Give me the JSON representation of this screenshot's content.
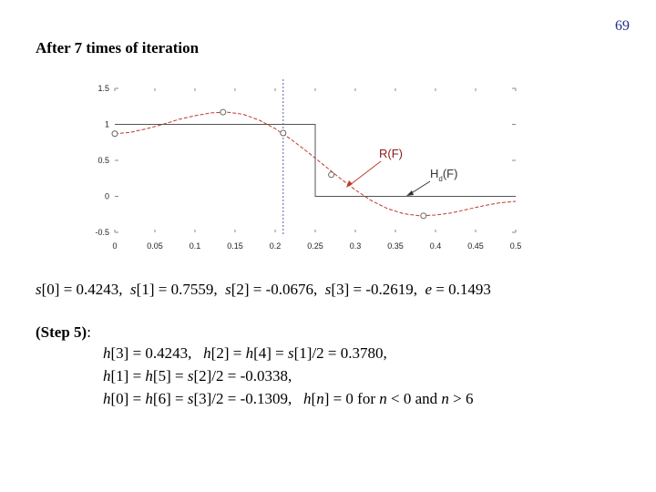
{
  "page_number": "69",
  "heading": "After 7 times of iteration",
  "chart_data": {
    "type": "line",
    "title": "",
    "xlabel": "",
    "ylabel": "",
    "xlim": [
      0,
      0.5
    ],
    "ylim": [
      -0.5,
      1.5
    ],
    "x_ticks": [
      "0",
      "0.05",
      "0.1",
      "0.15",
      "0.2",
      "0.25",
      "0.3",
      "0.35",
      "0.4",
      "0.45",
      "0.5"
    ],
    "y_ticks": [
      "1.5",
      "1",
      "0.5",
      "0",
      "-0.5"
    ],
    "grid": false,
    "series": [
      {
        "name": "R(F)",
        "color": "#c0392b",
        "style": "dashed",
        "x": [
          0,
          0.02,
          0.04,
          0.06,
          0.08,
          0.1,
          0.12,
          0.14,
          0.16,
          0.18,
          0.2,
          0.22,
          0.24,
          0.26,
          0.28,
          0.3,
          0.32,
          0.34,
          0.36,
          0.38,
          0.4,
          0.42,
          0.44,
          0.46,
          0.48,
          0.5
        ],
        "y": [
          0.87,
          0.89,
          0.94,
          1.0,
          1.07,
          1.12,
          1.16,
          1.17,
          1.14,
          1.06,
          0.94,
          0.79,
          0.62,
          0.44,
          0.26,
          0.09,
          -0.06,
          -0.17,
          -0.24,
          -0.27,
          -0.26,
          -0.23,
          -0.18,
          -0.13,
          -0.09,
          -0.07
        ]
      },
      {
        "name": "Hd(F)",
        "color": "#555555",
        "style": "solid",
        "x": [
          0,
          0.25,
          0.25,
          0.5
        ],
        "y": [
          1,
          1,
          0,
          0
        ]
      }
    ],
    "extremal_points": {
      "x": [
        0,
        0.135,
        0.21,
        0.27,
        0.385
      ],
      "y": [
        0.87,
        1.17,
        0.88,
        0.3,
        -0.27
      ]
    },
    "reference_line": {
      "x": 0.21,
      "style": "dotted",
      "color": "#5560a0"
    },
    "annotations": [
      {
        "text": "R(F)",
        "color": "#8b1a1a"
      },
      {
        "text_main": "H",
        "text_sub": "d",
        "text_tail": "(F)"
      }
    ]
  },
  "results": {
    "s0_lbl": "s",
    "s0_idx": "[0] = 0.4243,",
    "s1_lbl": "s",
    "s1_idx": "[1] = 0.7559,",
    "s2_lbl": "s",
    "s2_idx": "[2] = -0.0676,",
    "s3_lbl": "s",
    "s3_idx": "[3] = -0.2619,",
    "e_lbl": "e",
    "e_val": " = 0.1493"
  },
  "step": {
    "label": "(Step 5)",
    "colon": ":",
    "line1": {
      "a": "h",
      "b": "[3] = 0.4243, ",
      "c": "h",
      "d": "[2] = ",
      "e": "h",
      "f": "[4] = ",
      "g": "s",
      "h": "[1]/2 = 0.3780,"
    },
    "line2": {
      "a": "h",
      "b": "[1] = ",
      "c": "h",
      "d": "[5] = ",
      "e": "s",
      "f": "[2]/2 = -0.0338,"
    },
    "line3": {
      "a": "h",
      "b": "[0] = ",
      "c": "h",
      "d": "[6] = ",
      "e": "s",
      "f": "[3]/2 = -0.1309, ",
      "g": "h",
      "h": "[",
      "i": "n",
      "j": "] = 0 for ",
      "k": "n",
      "l": " < 0 and ",
      "m": "n",
      "n2": " > 6"
    }
  }
}
